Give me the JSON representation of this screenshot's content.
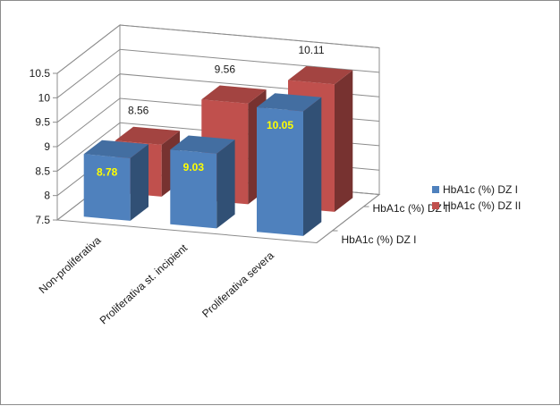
{
  "chart_data": {
    "type": "bar",
    "categories": [
      "Non-proliferativa",
      "Proliferativa st. incipient",
      "Proliferativa severa"
    ],
    "series": [
      {
        "name": "HbA1c (%) DZ I",
        "values": [
          8.78,
          9.03,
          10.05
        ],
        "color": "#4f81bd"
      },
      {
        "name": "HbA1c (%) DZ II",
        "values": [
          8.56,
          9.56,
          10.11
        ],
        "color": "#c0504d"
      }
    ],
    "depth_labels": [
      "HbA1c (%) DZ I",
      "HbA1c (%) DZ II"
    ],
    "yticks": [
      "7.5",
      "8",
      "8.5",
      "9",
      "9.5",
      "10",
      "10.5"
    ],
    "ylim": [
      7.5,
      10.5
    ],
    "grid": true,
    "legend_position": "right",
    "legend": [
      {
        "label": "HbA1c (%) DZ I",
        "color": "#4f81bd"
      },
      {
        "label": "HbA1c (%) DZ II",
        "color": "#c0504d"
      }
    ]
  }
}
